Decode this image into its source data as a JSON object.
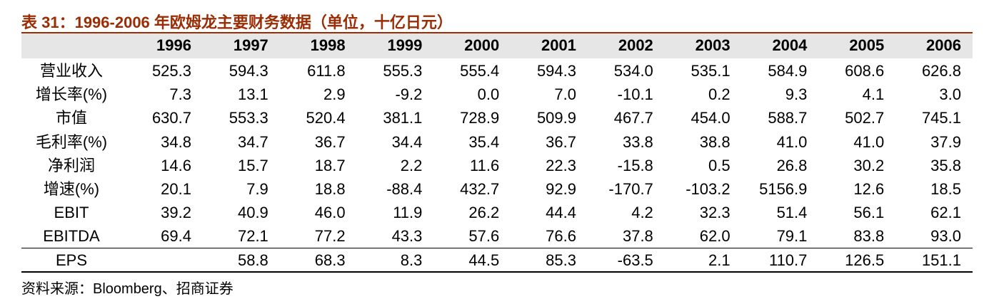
{
  "title": "表 31：1996-2006 年欧姆龙主要财务数据（单位，十亿日元）",
  "table": {
    "header": [
      "1996",
      "1997",
      "1998",
      "1999",
      "2000",
      "2001",
      "2002",
      "2003",
      "2004",
      "2005",
      "2006"
    ],
    "rows": [
      {
        "label": "营业收入",
        "values": [
          "525.3",
          "594.3",
          "611.8",
          "555.3",
          "555.4",
          "594.3",
          "534.0",
          "535.1",
          "584.9",
          "608.6",
          "626.8"
        ]
      },
      {
        "label": "增长率(%)",
        "values": [
          "7.3",
          "13.1",
          "2.9",
          "-9.2",
          "0.0",
          "7.0",
          "-10.1",
          "0.2",
          "9.3",
          "4.1",
          "3.0"
        ]
      },
      {
        "label": "市值",
        "values": [
          "630.7",
          "553.3",
          "520.4",
          "381.1",
          "728.9",
          "509.9",
          "467.7",
          "454.0",
          "588.7",
          "502.7",
          "745.1"
        ]
      },
      {
        "label": "毛利率(%)",
        "values": [
          "34.8",
          "34.7",
          "36.7",
          "34.4",
          "35.4",
          "36.7",
          "33.8",
          "38.8",
          "41.0",
          "41.0",
          "37.9"
        ]
      },
      {
        "label": "净利润",
        "values": [
          "14.6",
          "15.7",
          "18.7",
          "2.2",
          "11.6",
          "22.3",
          "-15.8",
          "0.5",
          "26.8",
          "30.2",
          "35.8"
        ]
      },
      {
        "label": "增速(%)",
        "values": [
          "20.1",
          "7.9",
          "18.8",
          "-88.4",
          "432.7",
          "92.9",
          "-170.7",
          "-103.2",
          "5156.9",
          "12.6",
          "18.5"
        ]
      },
      {
        "label": "EBIT",
        "values": [
          "39.2",
          "40.9",
          "46.0",
          "11.9",
          "26.2",
          "44.4",
          "4.2",
          "32.3",
          "51.4",
          "56.1",
          "62.1"
        ]
      },
      {
        "label": "EBITDA",
        "values": [
          "69.4",
          "72.1",
          "77.2",
          "43.3",
          "57.6",
          "76.6",
          "37.8",
          "62.0",
          "79.1",
          "83.8",
          "93.0"
        ]
      },
      {
        "label": "EPS",
        "values": [
          null,
          "58.8",
          "68.3",
          "8.3",
          "44.5",
          "85.3",
          "-63.5",
          "2.1",
          "110.7",
          "126.5",
          "151.1"
        ]
      }
    ]
  },
  "source": "资料来源：Bloomberg、招商证券"
}
